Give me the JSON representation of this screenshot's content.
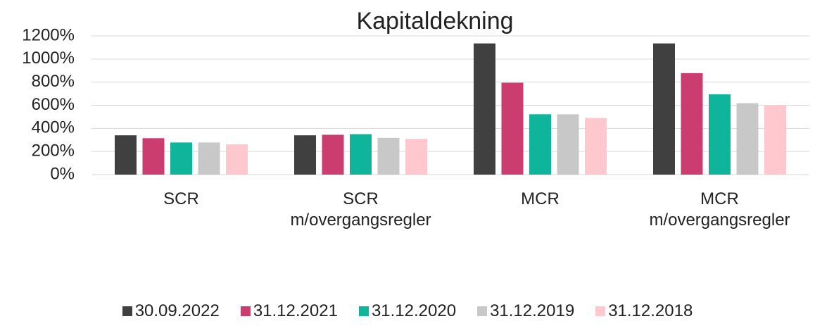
{
  "chart_data": {
    "type": "bar",
    "title": "Kapitaldekning",
    "categories": [
      "SCR",
      "SCR m/overgangsregler",
      "MCR",
      "MCR m/overgangsregler"
    ],
    "series": [
      {
        "name": "30.09.2022",
        "color": "#404040",
        "values": [
          340,
          340,
          1135,
          1135
        ]
      },
      {
        "name": "31.12.2021",
        "color": "#cc3d6f",
        "values": [
          315,
          345,
          795,
          878
        ]
      },
      {
        "name": "31.12.2020",
        "color": "#0fb59a",
        "values": [
          278,
          350,
          522,
          695
        ]
      },
      {
        "name": "31.12.2019",
        "color": "#c8c8c8",
        "values": [
          278,
          318,
          522,
          618
        ]
      },
      {
        "name": "31.12.2018",
        "color": "#ffc7ce",
        "values": [
          262,
          310,
          490,
          600
        ]
      }
    ],
    "ylim": [
      0,
      1200
    ],
    "yticks": [
      {
        "value": 0,
        "label": "0%"
      },
      {
        "value": 200,
        "label": "200%"
      },
      {
        "value": 400,
        "label": "400%"
      },
      {
        "value": 600,
        "label": "600%"
      },
      {
        "value": 800,
        "label": "800%"
      },
      {
        "value": 1000,
        "label": "1000%"
      },
      {
        "value": 1200,
        "label": "1200%"
      }
    ],
    "grid": true,
    "legend": "bottom"
  }
}
